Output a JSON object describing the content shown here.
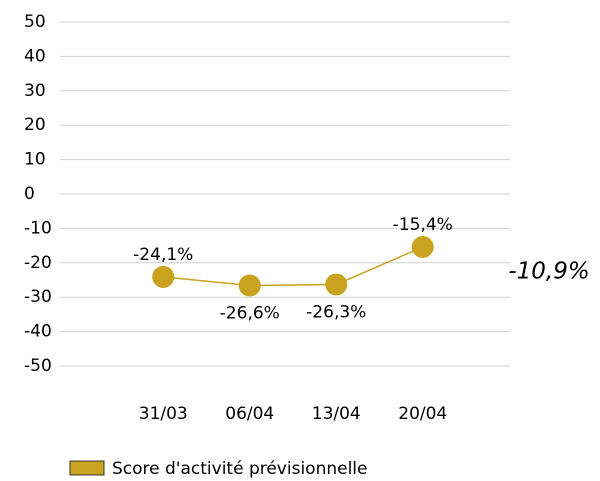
{
  "chart_data": {
    "type": "line",
    "categories": [
      "31/03",
      "06/04",
      "13/04",
      "20/04"
    ],
    "series": [
      {
        "name": "Score d'activité prévisionnelle",
        "color": "#c9a21f",
        "values": [
          -24.1,
          -26.6,
          -26.3,
          -15.4
        ],
        "value_labels": [
          "-24,1%",
          "-26,6%",
          "-26,3%",
          "-15,4%"
        ]
      }
    ],
    "ylim": [
      -50,
      50
    ],
    "yticks": [
      -50,
      -40,
      -30,
      -20,
      -10,
      0,
      10,
      20,
      30,
      40,
      50
    ],
    "grid": true,
    "legend": "bottom",
    "annotation": "-10,9%"
  }
}
